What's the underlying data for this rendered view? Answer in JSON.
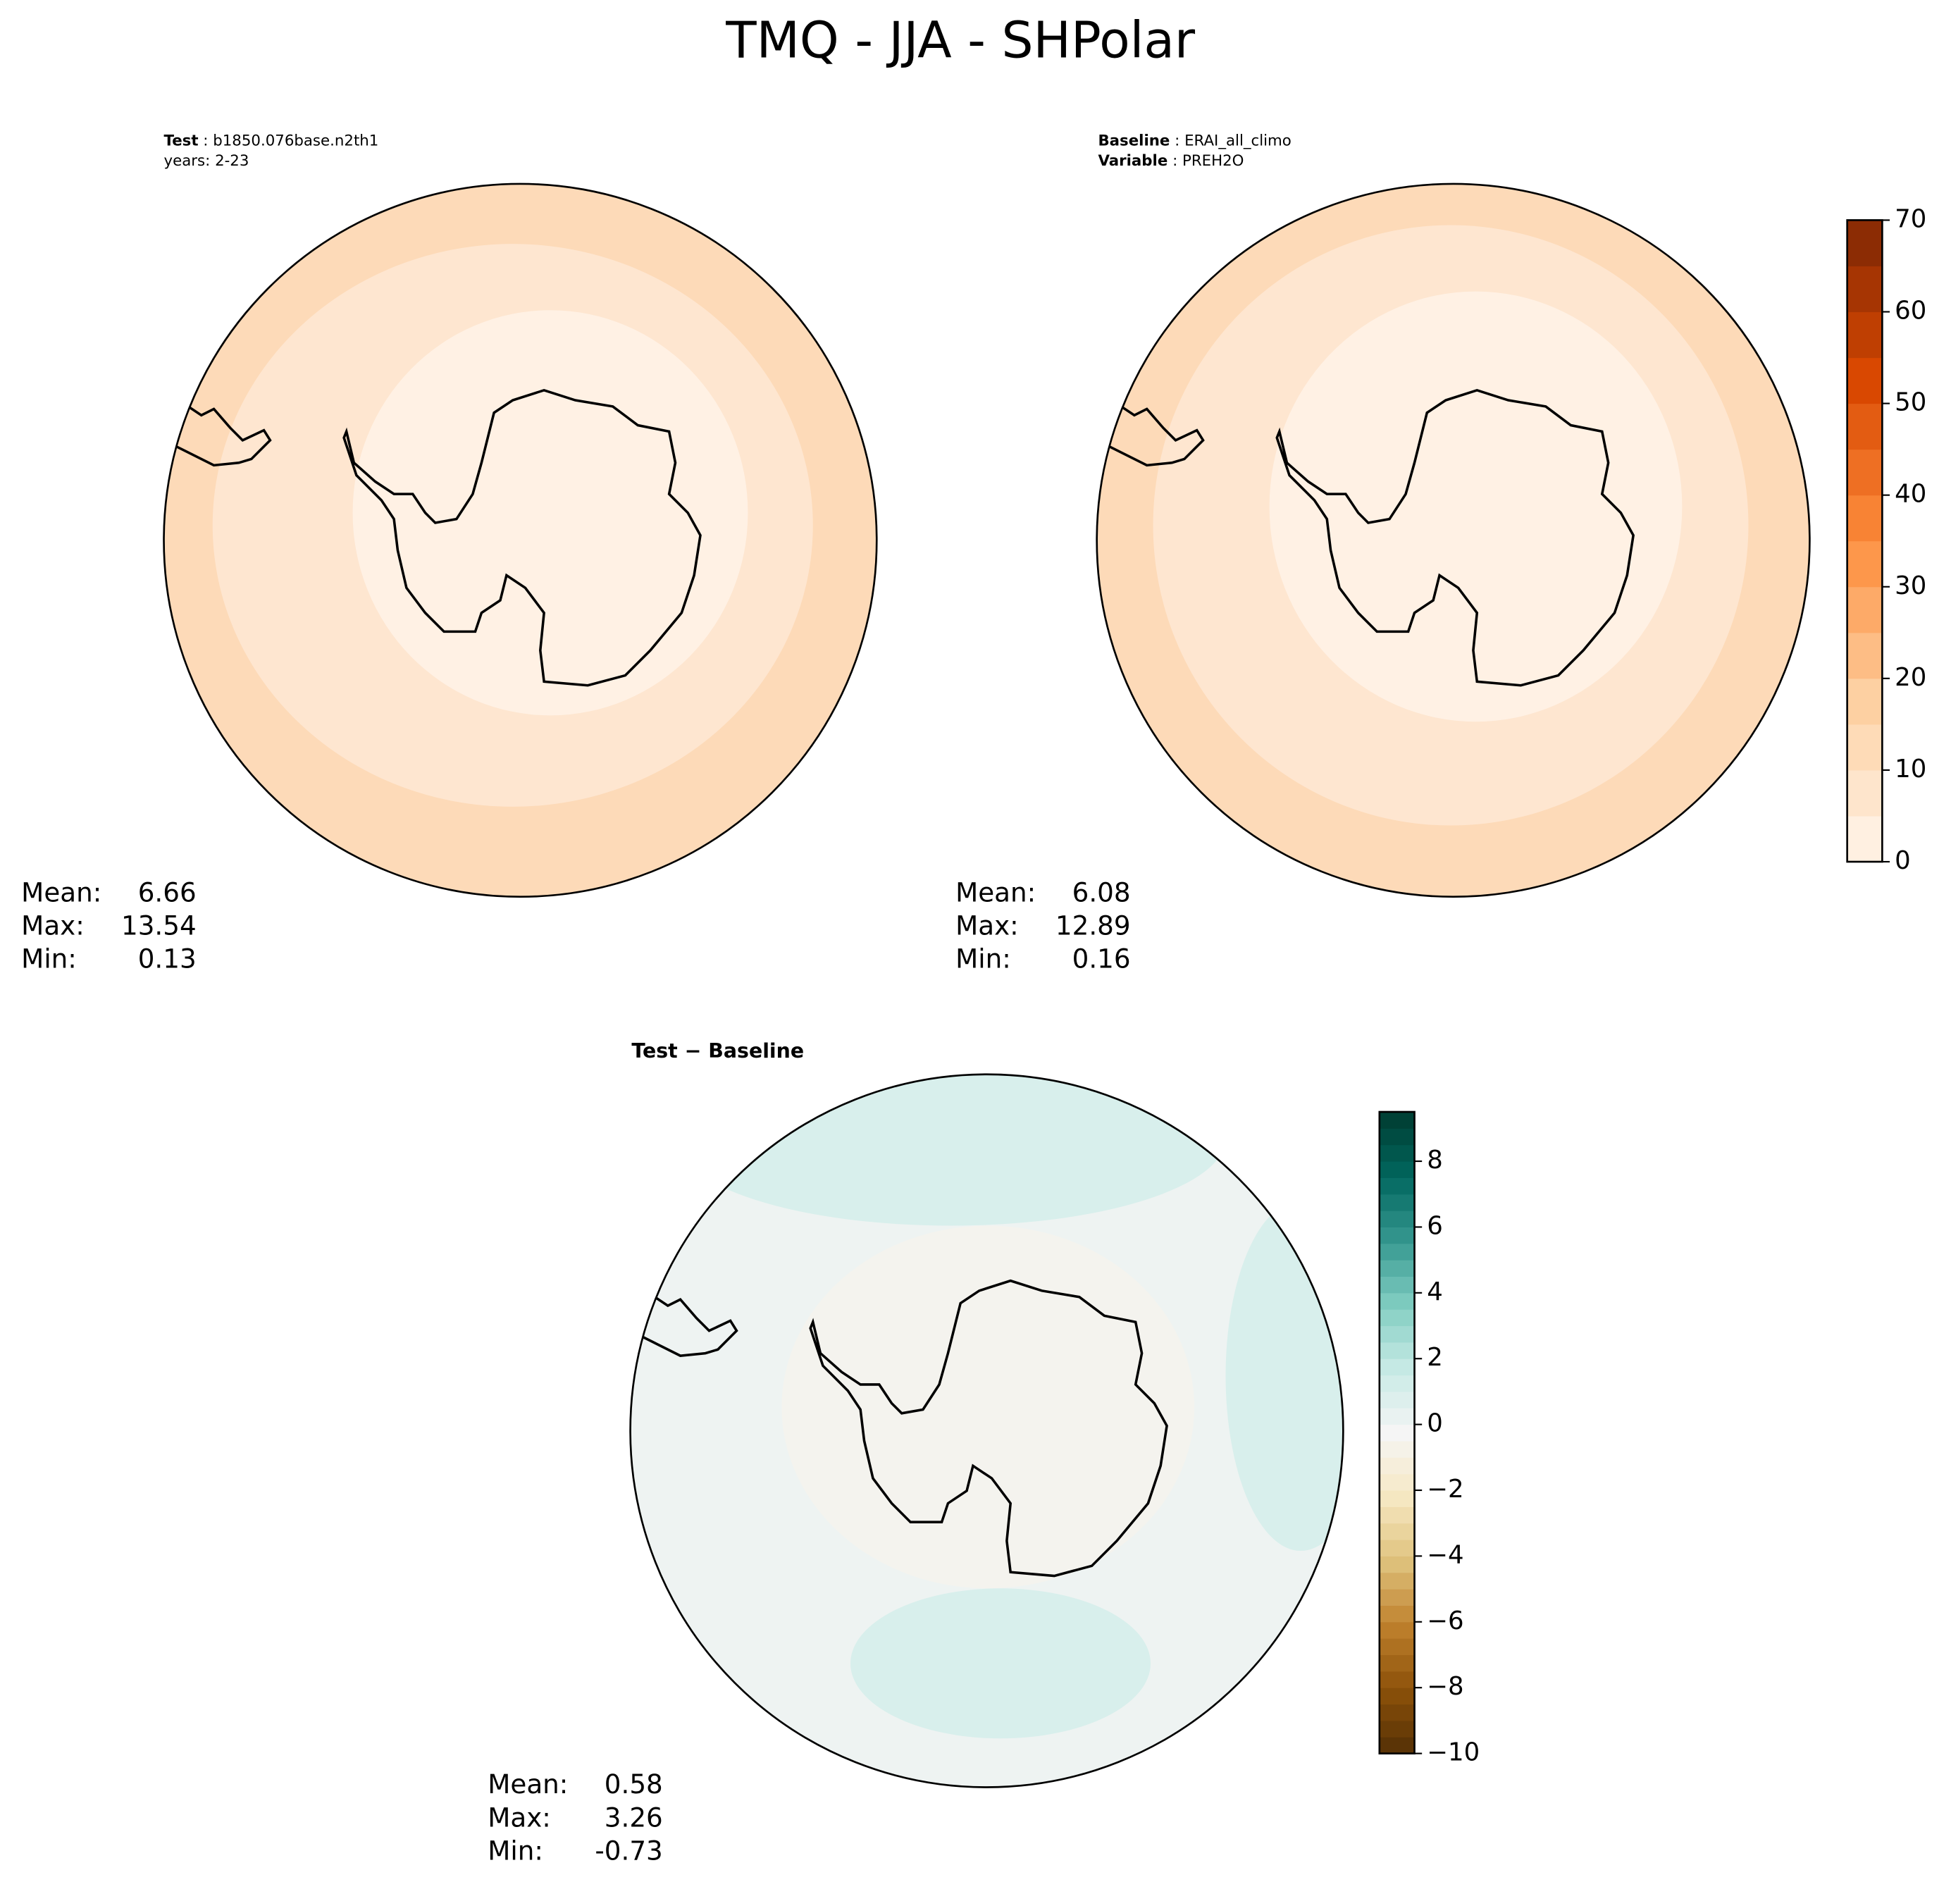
{
  "chart_data": [
    {
      "type": "polar-map",
      "title": "TMQ - JJA - SHPolar",
      "subtitle": [
        [
          {
            "text": "Test",
            "bold": true
          },
          {
            "text": " : b1850.076base.n2th1"
          }
        ],
        [
          {
            "text": "years: 2-23"
          }
        ]
      ],
      "stats": [
        {
          "label": "Mean:",
          "value": 6.66
        },
        {
          "label": "Max:",
          "value": 13.54
        },
        {
          "label": "Min:",
          "value": 0.13
        }
      ]
    },
    {
      "type": "polar-map",
      "subtitle": [
        [
          {
            "text": "Baseline",
            "bold": true
          },
          {
            "text": " : ERAI_all_climo"
          }
        ],
        [
          {
            "text": "Variable",
            "bold": true
          },
          {
            "text": " : PREH2O"
          }
        ]
      ],
      "stats": [
        {
          "label": "Mean:",
          "value": 6.08
        },
        {
          "label": "Max:",
          "value": 12.89
        },
        {
          "label": "Min:",
          "value": 0.16
        }
      ],
      "colorbar": {
        "ylim": [
          0,
          70
        ],
        "yticks": [
          0,
          10,
          20,
          30,
          40,
          50,
          60,
          70
        ],
        "levels": [
          0,
          5,
          10,
          15,
          20,
          25,
          30,
          35,
          40,
          45,
          50,
          55,
          60,
          65,
          70
        ],
        "cmap": [
          "#fff5eb",
          "#fdd0a2",
          "#fd8d3c",
          "#d94801",
          "#7f2704"
        ]
      }
    },
    {
      "type": "polar-map",
      "title": "Test − Baseline",
      "stats": [
        {
          "label": "Mean:",
          "value": 0.58
        },
        {
          "label": "Max:",
          "value": 3.26
        },
        {
          "label": "Min:",
          "value": -0.73
        }
      ],
      "colorbar": {
        "ylim": [
          -10,
          9.5
        ],
        "yticks": [
          {
            "value": -10,
            "label": "−10"
          },
          {
            "value": -8,
            "label": "−8"
          },
          {
            "value": -6,
            "label": "−6"
          },
          {
            "value": -4,
            "label": "−4"
          },
          {
            "value": -2,
            "label": "−2"
          },
          0,
          2,
          4,
          6,
          8
        ],
        "levels": [
          -10,
          -9.5,
          -9,
          -8.5,
          -8,
          -7.5,
          -7,
          -6.5,
          -6,
          -5.5,
          -5,
          -4.5,
          -4,
          -3.5,
          -3,
          -2.5,
          -2,
          -1.5,
          -1,
          -0.5,
          0,
          0.5,
          1,
          1.5,
          2,
          2.5,
          3,
          3.5,
          4,
          4.5,
          5,
          5.5,
          6,
          6.5,
          7,
          7.5,
          8,
          8.5,
          9,
          9.5
        ],
        "cmap": [
          "#543005",
          "#8c510a",
          "#bf812d",
          "#dfc27d",
          "#f6e8c3",
          "#f5f5f5",
          "#c7eae5",
          "#80cdc1",
          "#35978f",
          "#01665e",
          "#003c30"
        ]
      }
    }
  ]
}
